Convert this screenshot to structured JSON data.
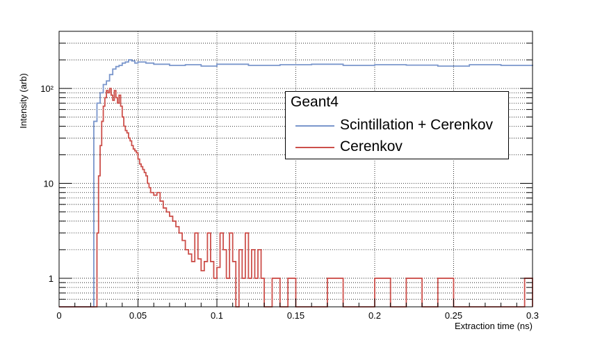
{
  "chart_data": {
    "type": "line",
    "xlabel": "Extraction time (ns)",
    "ylabel": "Intensity (arb)",
    "xlim": [
      0,
      0.3
    ],
    "ylim": [
      0.5,
      400
    ],
    "yscale": "log",
    "grid": true,
    "x_ticks": [
      "0",
      "0.05",
      "0.1",
      "0.15",
      "0.2",
      "0.25",
      "0.3"
    ],
    "y_ticks": [
      "1",
      "10",
      "10²"
    ],
    "legend": {
      "title": "Geant4",
      "position": "top-right",
      "entries": [
        "Scintillation + Cerenkov",
        "Cerenkov"
      ]
    },
    "series": [
      {
        "name": "Scintillation + Cerenkov",
        "color": "#7a96cc",
        "x": [
          0.02,
          0.022,
          0.024,
          0.026,
          0.028,
          0.03,
          0.032,
          0.034,
          0.036,
          0.038,
          0.04,
          0.042,
          0.044,
          0.046,
          0.048,
          0.05,
          0.055,
          0.06,
          0.07,
          0.08,
          0.09,
          0.1,
          0.12,
          0.14,
          0.16,
          0.18,
          0.2,
          0.22,
          0.24,
          0.26,
          0.28,
          0.3
        ],
        "y": [
          0.5,
          45,
          70,
          90,
          110,
          120,
          140,
          160,
          170,
          175,
          185,
          190,
          200,
          195,
          185,
          190,
          185,
          180,
          175,
          178,
          172,
          180,
          175,
          178,
          180,
          175,
          178,
          176,
          172,
          178,
          175,
          178
        ]
      },
      {
        "name": "Cerenkov",
        "color": "#cc4f4a",
        "x": [
          0.02,
          0.021,
          0.022,
          0.023,
          0.024,
          0.025,
          0.026,
          0.027,
          0.028,
          0.029,
          0.03,
          0.031,
          0.032,
          0.033,
          0.034,
          0.035,
          0.036,
          0.037,
          0.038,
          0.039,
          0.04,
          0.041,
          0.042,
          0.043,
          0.044,
          0.045,
          0.046,
          0.047,
          0.048,
          0.049,
          0.05,
          0.051,
          0.052,
          0.053,
          0.054,
          0.055,
          0.056,
          0.057,
          0.058,
          0.06,
          0.062,
          0.064,
          0.066,
          0.068,
          0.07,
          0.072,
          0.074,
          0.076,
          0.078,
          0.08,
          0.082,
          0.084,
          0.086,
          0.088,
          0.09,
          0.092,
          0.094,
          0.096,
          0.098,
          0.1,
          0.102,
          0.104,
          0.106,
          0.108,
          0.11,
          0.112,
          0.114,
          0.116,
          0.118,
          0.12,
          0.122,
          0.124,
          0.126,
          0.128,
          0.13,
          0.135,
          0.14,
          0.145,
          0.15,
          0.16,
          0.17,
          0.18,
          0.19,
          0.2,
          0.21,
          0.22,
          0.23,
          0.24,
          0.25,
          0.26,
          0.27,
          0.28,
          0.29,
          0.295,
          0.3
        ],
        "y": [
          0.5,
          0.5,
          0.5,
          0.5,
          3,
          12,
          25,
          45,
          65,
          80,
          95,
          90,
          100,
          85,
          75,
          95,
          80,
          70,
          85,
          65,
          50,
          40,
          36,
          34,
          30,
          28,
          25,
          23,
          22,
          21,
          18,
          16,
          15,
          14,
          13,
          12,
          10,
          9,
          8,
          7.5,
          8,
          6.5,
          5.5,
          5,
          4.5,
          4,
          3.5,
          3,
          2.5,
          2,
          1.8,
          1.5,
          3,
          1.6,
          1.2,
          1.5,
          3,
          1.5,
          1,
          1.3,
          3,
          2,
          1,
          3,
          1.5,
          0.5,
          2,
          1,
          3,
          1,
          2,
          1,
          2,
          1,
          0.5,
          1,
          0.5,
          1,
          0.5,
          0.5,
          1,
          0.5,
          0.5,
          1,
          0.5,
          1,
          0.5,
          1,
          0.5,
          0.5,
          0.5,
          0.5,
          0.5,
          1,
          0.5
        ]
      }
    ]
  }
}
